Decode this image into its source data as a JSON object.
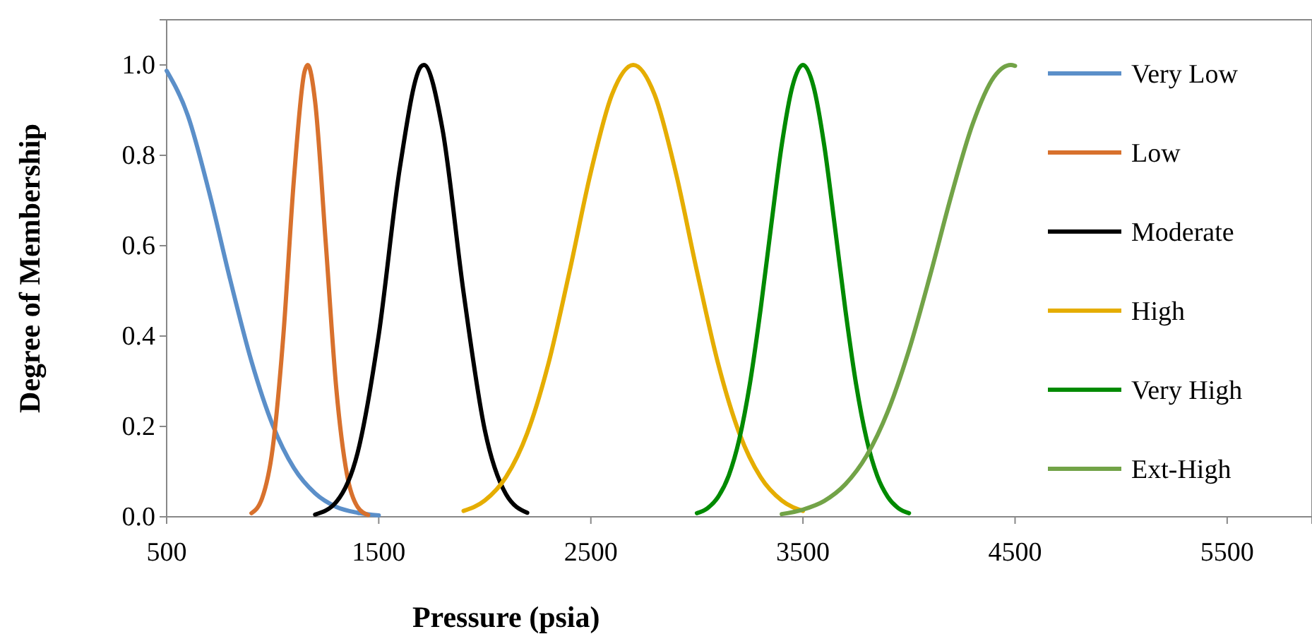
{
  "chart_data": {
    "type": "line",
    "xlabel": "Pressure (psia)",
    "ylabel": "Degree of Membership",
    "xlim": [
      500,
      5900
    ],
    "xticks": [
      500,
      1500,
      2500,
      3500,
      4500,
      5500
    ],
    "ylim": [
      0,
      1.1
    ],
    "yticks": [
      {
        "value": 0,
        "label": "0.0"
      },
      {
        "value": 0.2,
        "label": "0.2"
      },
      {
        "value": 0.4,
        "label": "0.4"
      },
      {
        "value": 0.6,
        "label": "0.6"
      },
      {
        "value": 0.8,
        "label": "0.8"
      },
      {
        "value": 1,
        "label": "1.0"
      }
    ],
    "grid": false,
    "legend": "right",
    "marker": "none",
    "line_style": "solid",
    "series": [
      {
        "name": "Very Low",
        "color": "#5b8fc9",
        "x": [
          500,
          600,
          700,
          800,
          900,
          1000,
          1100,
          1200,
          1300,
          1400,
          1500
        ],
        "values": [
          0.987,
          0.888,
          0.719,
          0.524,
          0.344,
          0.203,
          0.108,
          0.052,
          0.022,
          0.009,
          0.003
        ]
      },
      {
        "name": "Low",
        "color": "#d8712d",
        "x": [
          900,
          950,
          1000,
          1050,
          1100,
          1150,
          1165,
          1200,
          1250,
          1300,
          1350,
          1400,
          1450
        ],
        "values": [
          0.008,
          0.041,
          0.152,
          0.4,
          0.747,
          0.985,
          1,
          0.919,
          0.607,
          0.283,
          0.094,
          0.022,
          0.004
        ]
      },
      {
        "name": "Moderate",
        "color": "#000000",
        "x": [
          1200,
          1300,
          1400,
          1500,
          1600,
          1700,
          1713,
          1800,
          1900,
          2000,
          2100,
          2200
        ],
        "values": [
          0.005,
          0.033,
          0.141,
          0.403,
          0.774,
          0.997,
          1,
          0.859,
          0.496,
          0.192,
          0.05,
          0.009
        ]
      },
      {
        "name": "High",
        "color": "#e5ad00",
        "x": [
          1900,
          2000,
          2100,
          2200,
          2300,
          2400,
          2500,
          2600,
          2700,
          2800,
          2900,
          3000,
          3100,
          3200,
          3300,
          3400,
          3500
        ],
        "values": [
          0.013,
          0.036,
          0.088,
          0.185,
          0.339,
          0.544,
          0.763,
          0.935,
          1,
          0.935,
          0.763,
          0.544,
          0.339,
          0.185,
          0.088,
          0.036,
          0.013
        ]
      },
      {
        "name": "Very High",
        "color": "#008a00",
        "x": [
          3000,
          3050,
          3100,
          3150,
          3200,
          3250,
          3300,
          3350,
          3400,
          3450,
          3500,
          3550,
          3600,
          3650,
          3700,
          3750,
          3800,
          3850,
          3900,
          3950,
          4000
        ],
        "values": [
          0.008,
          0.019,
          0.044,
          0.091,
          0.172,
          0.295,
          0.458,
          0.644,
          0.823,
          0.952,
          1,
          0.952,
          0.823,
          0.644,
          0.458,
          0.295,
          0.172,
          0.091,
          0.044,
          0.019,
          0.008
        ]
      },
      {
        "name": "Ext-High",
        "color": "#72a347",
        "x": [
          3400,
          3500,
          3600,
          3700,
          3800,
          3900,
          4000,
          4100,
          4200,
          4300,
          4400,
          4480,
          4500
        ],
        "values": [
          0.006,
          0.016,
          0.035,
          0.072,
          0.135,
          0.233,
          0.369,
          0.535,
          0.712,
          0.869,
          0.973,
          1,
          0.998
        ]
      }
    ]
  }
}
